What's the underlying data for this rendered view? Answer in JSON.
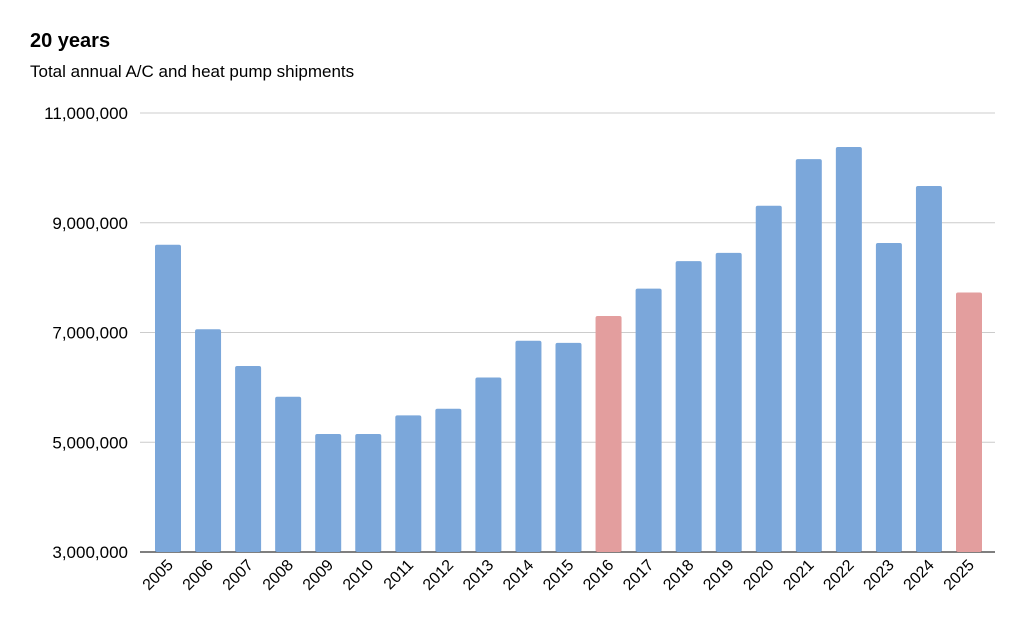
{
  "chart_data": {
    "type": "bar",
    "title": "20 years",
    "subtitle": "Total annual A/C and heat pump shipments",
    "xlabel": "",
    "ylabel": "",
    "ylim": [
      3000000,
      11000000
    ],
    "yticks": [
      3000000,
      5000000,
      7000000,
      9000000,
      11000000
    ],
    "ytick_labels": [
      "3,000,000",
      "5,000,000",
      "7,000,000",
      "9,000,000",
      "11,000,000"
    ],
    "grid": true,
    "categories": [
      "2005",
      "2006",
      "2007",
      "2008",
      "2009",
      "2010",
      "2011",
      "2012",
      "2013",
      "2014",
      "2015",
      "2016",
      "2017",
      "2018",
      "2019",
      "2020",
      "2021",
      "2022",
      "2023",
      "2024",
      "2025"
    ],
    "values": [
      8600000,
      7060000,
      6390000,
      5830000,
      5150000,
      5150000,
      5490000,
      5610000,
      6180000,
      6850000,
      6810000,
      7300000,
      7800000,
      8300000,
      8450000,
      9310000,
      10160000,
      10380000,
      8630000,
      9670000,
      7730000
    ],
    "bar_colors": [
      "#7ba7da",
      "#7ba7da",
      "#7ba7da",
      "#7ba7da",
      "#7ba7da",
      "#7ba7da",
      "#7ba7da",
      "#7ba7da",
      "#7ba7da",
      "#7ba7da",
      "#7ba7da",
      "#e39e9e",
      "#7ba7da",
      "#7ba7da",
      "#7ba7da",
      "#7ba7da",
      "#7ba7da",
      "#7ba7da",
      "#7ba7da",
      "#7ba7da",
      "#e39e9e"
    ],
    "gridline_color": "#cccccc",
    "baseline_color": "#333333"
  }
}
